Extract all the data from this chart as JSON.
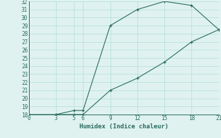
{
  "line1_x": [
    0,
    3,
    5,
    6,
    9,
    12,
    15,
    18,
    21
  ],
  "line1_y": [
    18,
    18,
    18.5,
    18.5,
    29,
    31,
    32,
    31.5,
    28.5
  ],
  "line2_x": [
    3,
    5,
    6,
    9,
    12,
    15,
    18,
    21
  ],
  "line2_y": [
    18,
    18,
    18,
    21,
    22.5,
    24.5,
    27,
    28.5
  ],
  "line_color": "#2a6b5e",
  "bg_color": "#dff2f0",
  "grid_color": "#b0ddd8",
  "xlabel": "Humidex (Indice chaleur)",
  "xlim": [
    0,
    21
  ],
  "ylim": [
    18,
    32
  ],
  "xticks": [
    0,
    3,
    5,
    6,
    9,
    12,
    15,
    18,
    21
  ],
  "yticks": [
    18,
    19,
    20,
    21,
    22,
    23,
    24,
    25,
    26,
    27,
    28,
    29,
    30,
    31,
    32
  ],
  "marker": "+",
  "markersize": 3.5,
  "linewidth": 0.8,
  "xlabel_fontsize": 6.5,
  "tick_fontsize": 5.5
}
